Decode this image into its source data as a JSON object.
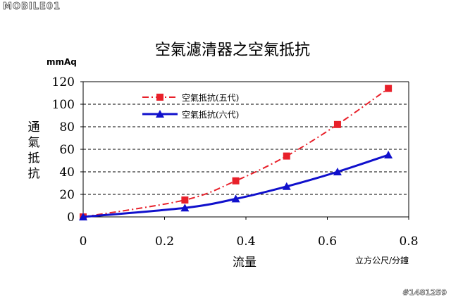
{
  "watermark": "MOBILE01",
  "image_id": "#1481259",
  "chart_data": {
    "type": "line",
    "title": "空氣濾清器之空氣抵抗",
    "ylabel": "通氣抵抗",
    "yunit": "mmAq",
    "xlabel": "流量",
    "xunit": "立方公尺/分鐘",
    "xlim": [
      0,
      0.8
    ],
    "ylim": [
      0,
      120
    ],
    "xticks": [
      "0",
      "0.2",
      "0.4",
      "0.6",
      "0.8"
    ],
    "yticks": [
      "0",
      "20",
      "40",
      "60",
      "80",
      "100",
      "120"
    ],
    "grid": "horizontal-dashed",
    "legend_position": "top-left-inside",
    "series": [
      {
        "name": "空氣抵抗(五代)",
        "color": "#e8202a",
        "line_style": "dash-dot",
        "marker": "square",
        "x": [
          0,
          0.25,
          0.375,
          0.5,
          0.625,
          0.75
        ],
        "y": [
          0,
          15,
          32,
          54,
          82,
          114
        ]
      },
      {
        "name": "空氣抵抗(六代)",
        "color": "#1010cc",
        "line_style": "solid",
        "marker": "triangle",
        "x": [
          0,
          0.25,
          0.375,
          0.5,
          0.625,
          0.75
        ],
        "y": [
          0,
          8,
          16,
          27,
          40,
          55
        ]
      }
    ]
  }
}
